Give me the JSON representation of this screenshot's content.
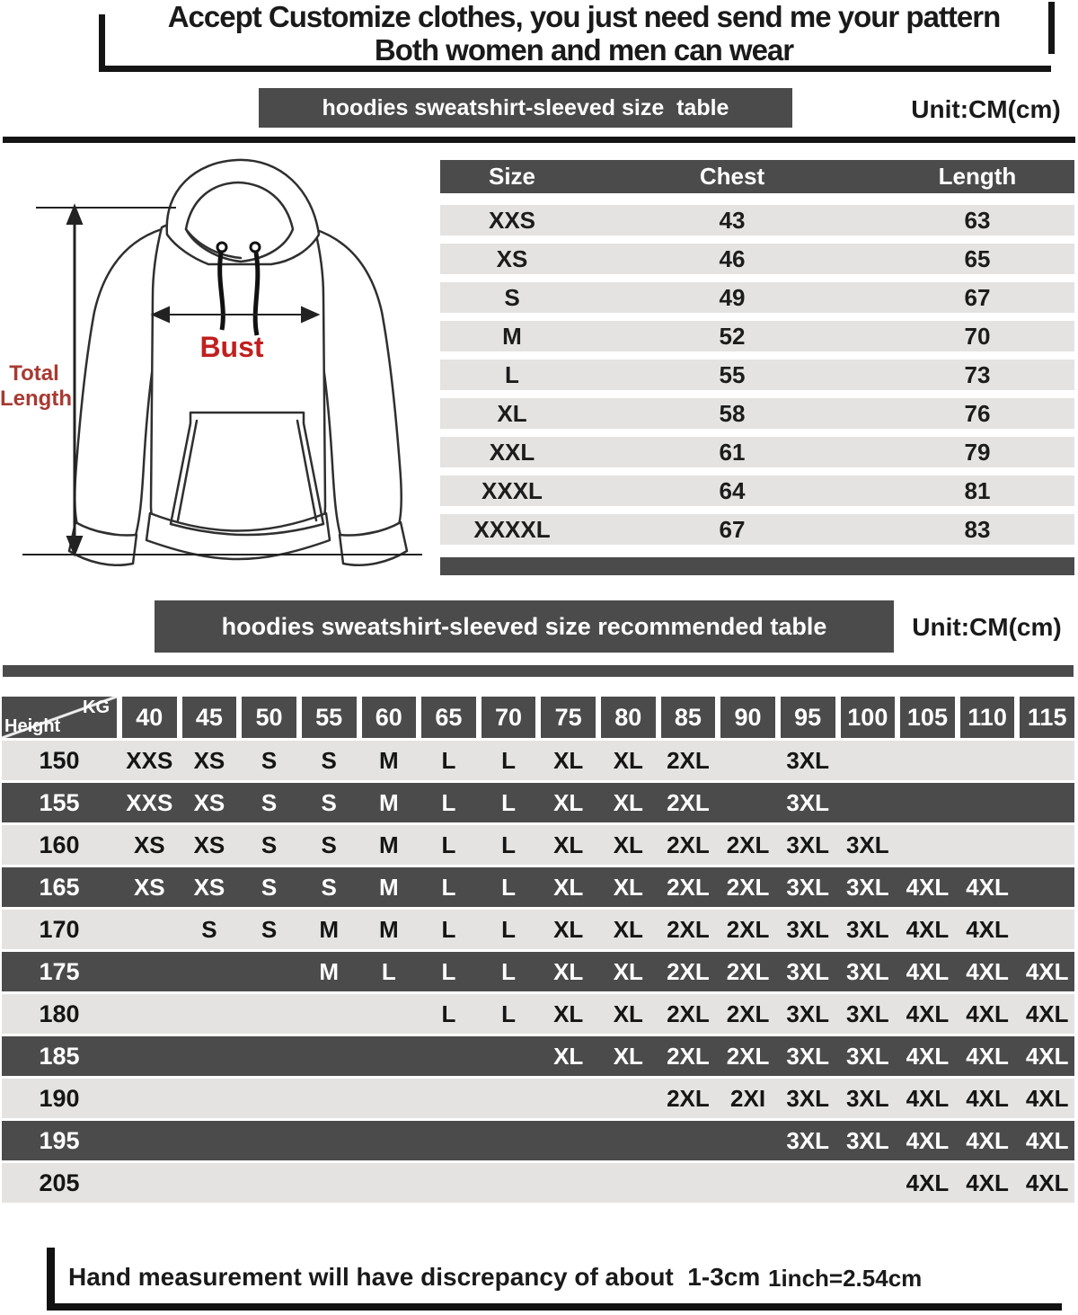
{
  "colors": {
    "dark_gray": "#4b4b4b",
    "light_row": "#e4e3e1",
    "black": "#151515",
    "bust_red": "#c11f1f",
    "length_red": "#a83a32",
    "white": "#ffffff"
  },
  "header": {
    "line1": "Accept Customize clothes, you just need send me your pattern",
    "line2": "Both women and men can wear"
  },
  "size_section": {
    "banner": "hoodies sweatshirt-sleeved size  table",
    "unit": "Unit:CM(cm)",
    "diagram": {
      "total_length_line1": "Total",
      "total_length_line2": "Length",
      "bust_label": "Bust"
    },
    "table": {
      "headers": [
        "Size",
        "Chest",
        "Length"
      ],
      "rows": [
        [
          "XXS",
          "43",
          "63"
        ],
        [
          "XS",
          "46",
          "65"
        ],
        [
          "S",
          "49",
          "67"
        ],
        [
          "M",
          "52",
          "70"
        ],
        [
          "L",
          "55",
          "73"
        ],
        [
          "XL",
          "58",
          "76"
        ],
        [
          "XXL",
          "61",
          "79"
        ],
        [
          "XXXL",
          "64",
          "81"
        ],
        [
          "XXXXL",
          "67",
          "83"
        ]
      ]
    }
  },
  "recommend_section": {
    "banner": "hoodies sweatshirt-sleeved size recommended table",
    "unit": "Unit:CM(cm)",
    "corner_top": "KG",
    "corner_bottom": "Height",
    "weight_columns": [
      "40",
      "45",
      "50",
      "55",
      "60",
      "65",
      "70",
      "75",
      "80",
      "85",
      "90",
      "95",
      "100",
      "105",
      "110",
      "115"
    ],
    "rows": [
      {
        "height": "150",
        "cells": [
          "XXS",
          "XS",
          "S",
          "S",
          "M",
          "L",
          "L",
          "XL",
          "XL",
          "2XL",
          "",
          "3XL",
          "",
          "",
          "",
          ""
        ]
      },
      {
        "height": "155",
        "cells": [
          "XXS",
          "XS",
          "S",
          "S",
          "M",
          "L",
          "L",
          "XL",
          "XL",
          "2XL",
          "",
          "3XL",
          "",
          "",
          "",
          ""
        ]
      },
      {
        "height": "160",
        "cells": [
          "XS",
          "XS",
          "S",
          "S",
          "M",
          "L",
          "L",
          "XL",
          "XL",
          "2XL",
          "2XL",
          "3XL",
          "3XL",
          "",
          "",
          ""
        ]
      },
      {
        "height": "165",
        "cells": [
          "XS",
          "XS",
          "S",
          "S",
          "M",
          "L",
          "L",
          "XL",
          "XL",
          "2XL",
          "2XL",
          "3XL",
          "3XL",
          "4XL",
          "4XL",
          ""
        ]
      },
      {
        "height": "170",
        "cells": [
          "",
          "S",
          "S",
          "M",
          "M",
          "L",
          "L",
          "XL",
          "XL",
          "2XL",
          "2XL",
          "3XL",
          "3XL",
          "4XL",
          "4XL",
          ""
        ]
      },
      {
        "height": "175",
        "cells": [
          "",
          "",
          "",
          "M",
          "L",
          "L",
          "L",
          "XL",
          "XL",
          "2XL",
          "2XL",
          "3XL",
          "3XL",
          "4XL",
          "4XL",
          "4XL"
        ]
      },
      {
        "height": "180",
        "cells": [
          "",
          "",
          "",
          "",
          "",
          "L",
          "L",
          "XL",
          "XL",
          "2XL",
          "2XL",
          "3XL",
          "3XL",
          "4XL",
          "4XL",
          "4XL"
        ]
      },
      {
        "height": "185",
        "cells": [
          "",
          "",
          "",
          "",
          "",
          "",
          "",
          "XL",
          "XL",
          "2XL",
          "2XL",
          "3XL",
          "3XL",
          "4XL",
          "4XL",
          "4XL"
        ]
      },
      {
        "height": "190",
        "cells": [
          "",
          "",
          "",
          "",
          "",
          "",
          "",
          "",
          "",
          "2XL",
          "2XI",
          "3XL",
          "3XL",
          "4XL",
          "4XL",
          "4XL"
        ]
      },
      {
        "height": "195",
        "cells": [
          "",
          "",
          "",
          "",
          "",
          "",
          "",
          "",
          "",
          "",
          "",
          "3XL",
          "3XL",
          "4XL",
          "4XL",
          "4XL"
        ]
      },
      {
        "height": "205",
        "cells": [
          "",
          "",
          "",
          "",
          "",
          "",
          "",
          "",
          "",
          "",
          "",
          "",
          "",
          "4XL",
          "4XL",
          "4XL"
        ]
      }
    ]
  },
  "footer": {
    "note": "Hand measurement will have discrepancy of about  1-3cm",
    "conversion": "1inch=2.54cm"
  }
}
